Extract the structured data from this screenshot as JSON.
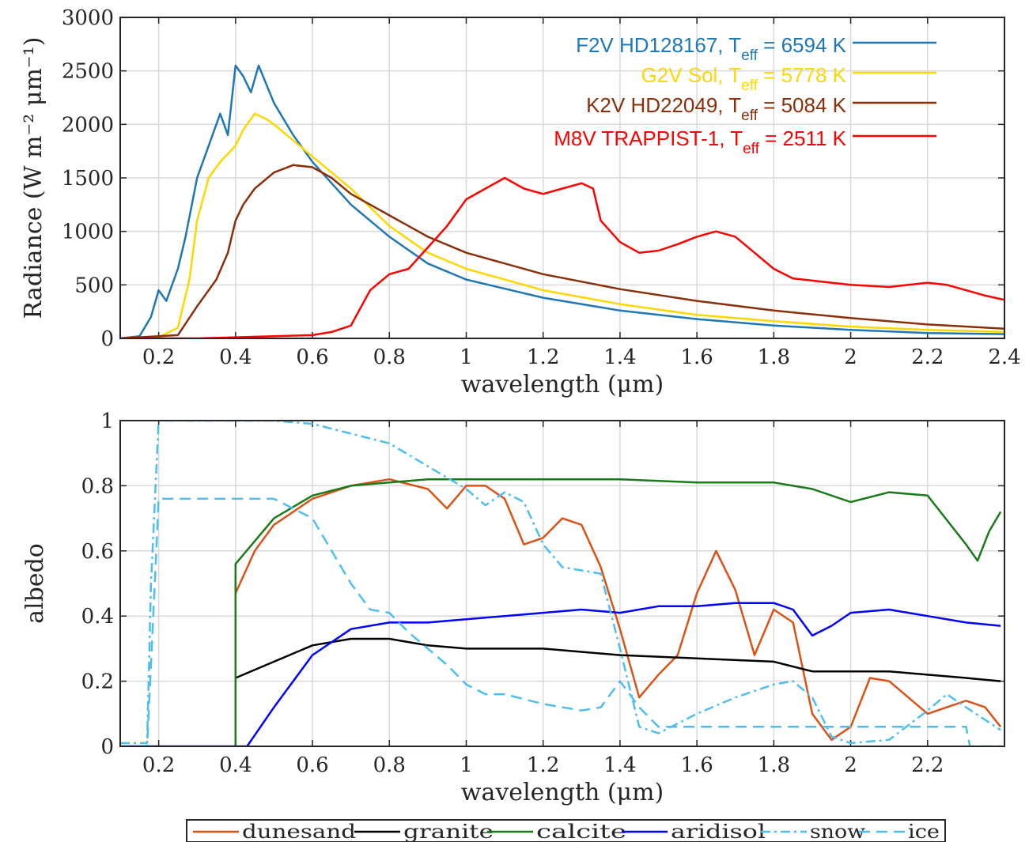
{
  "chart_data": [
    {
      "type": "line",
      "title": "",
      "xlabel": "wavelength (μm)",
      "ylabel": "Radiance (W m⁻² μm⁻¹)",
      "xlim": [
        0.1,
        2.4
      ],
      "ylim": [
        0,
        3000
      ],
      "xticks": [
        "0.2",
        "0.4",
        "0.6",
        "0.8",
        "1",
        "1.2",
        "1.4",
        "1.6",
        "1.8",
        "2",
        "2.2",
        "2.4"
      ],
      "yticks": [
        "0",
        "500",
        "1000",
        "1500",
        "2000",
        "2500",
        "3000"
      ],
      "grid": true,
      "legend_position": "top-right",
      "series": [
        {
          "name": "F2V HD128167, T_eff = 6594 K",
          "legend_main": "F2V HD128167, T",
          "legend_sub": "eff",
          "legend_tail": " = 6594 K",
          "color": "#1f77b4",
          "x": [
            0.1,
            0.15,
            0.18,
            0.2,
            0.22,
            0.25,
            0.27,
            0.3,
            0.33,
            0.36,
            0.38,
            0.4,
            0.42,
            0.44,
            0.46,
            0.5,
            0.55,
            0.6,
            0.65,
            0.7,
            0.8,
            0.9,
            1.0,
            1.2,
            1.4,
            1.6,
            1.8,
            2.0,
            2.2,
            2.4
          ],
          "y": [
            0,
            20,
            200,
            450,
            350,
            650,
            950,
            1500,
            1800,
            2100,
            1900,
            2550,
            2450,
            2300,
            2550,
            2200,
            1900,
            1650,
            1450,
            1250,
            950,
            700,
            550,
            380,
            260,
            180,
            120,
            80,
            50,
            40
          ]
        },
        {
          "name": "G2V Sol, T_eff = 5778 K",
          "legend_main": "G2V Sol, T",
          "legend_sub": "eff",
          "legend_tail": " = 5778 K",
          "color": "#ffd700",
          "x": [
            0.1,
            0.2,
            0.25,
            0.28,
            0.3,
            0.33,
            0.36,
            0.4,
            0.42,
            0.45,
            0.48,
            0.5,
            0.55,
            0.6,
            0.7,
            0.8,
            0.9,
            1.0,
            1.2,
            1.4,
            1.6,
            1.8,
            2.0,
            2.2,
            2.4
          ],
          "y": [
            0,
            10,
            100,
            550,
            1100,
            1500,
            1650,
            1800,
            1950,
            2100,
            2050,
            2000,
            1850,
            1700,
            1400,
            1050,
            800,
            650,
            450,
            320,
            220,
            160,
            110,
            80,
            60
          ]
        },
        {
          "name": "K2V HD22049, T_eff = 5084 K",
          "legend_main": "K2V HD22049, T",
          "legend_sub": "eff",
          "legend_tail": " = 5084 K",
          "color": "#8b2f0a",
          "x": [
            0.1,
            0.25,
            0.3,
            0.35,
            0.38,
            0.4,
            0.42,
            0.45,
            0.5,
            0.55,
            0.6,
            0.65,
            0.7,
            0.8,
            0.9,
            1.0,
            1.2,
            1.4,
            1.6,
            1.8,
            2.0,
            2.2,
            2.4
          ],
          "y": [
            0,
            30,
            300,
            550,
            800,
            1100,
            1250,
            1400,
            1550,
            1620,
            1600,
            1500,
            1350,
            1150,
            950,
            800,
            600,
            460,
            350,
            260,
            190,
            130,
            90
          ]
        },
        {
          "name": "M8V TRAPPIST-1, T_eff = 2511 K",
          "legend_main": "M8V TRAPPIST-1, T",
          "legend_sub": "eff",
          "legend_tail": " = 2511 K",
          "color": "#ff0000",
          "x": [
            0.1,
            0.3,
            0.5,
            0.6,
            0.65,
            0.7,
            0.75,
            0.8,
            0.85,
            0.9,
            0.95,
            1.0,
            1.05,
            1.1,
            1.15,
            1.2,
            1.25,
            1.3,
            1.33,
            1.35,
            1.4,
            1.45,
            1.5,
            1.55,
            1.6,
            1.65,
            1.7,
            1.75,
            1.8,
            1.85,
            1.9,
            1.95,
            2.0,
            2.1,
            2.2,
            2.25,
            2.3,
            2.35,
            2.4
          ],
          "y": [
            0,
            0,
            20,
            30,
            60,
            120,
            450,
            600,
            650,
            850,
            1050,
            1300,
            1400,
            1500,
            1400,
            1350,
            1400,
            1450,
            1400,
            1100,
            900,
            800,
            820,
            880,
            950,
            1000,
            950,
            800,
            650,
            560,
            540,
            520,
            500,
            480,
            520,
            500,
            450,
            400,
            360
          ]
        }
      ]
    },
    {
      "type": "line",
      "title": "",
      "xlabel": "wavelength (μm)",
      "ylabel": "albedo",
      "xlim": [
        0.1,
        2.4
      ],
      "ylim": [
        0,
        1
      ],
      "xticks": [
        "0.2",
        "0.4",
        "0.6",
        "0.8",
        "1",
        "1.2",
        "1.4",
        "1.6",
        "1.8",
        "2",
        "2.2"
      ],
      "yticks": [
        "0",
        "0.2",
        "0.4",
        "0.6",
        "0.8",
        "1"
      ],
      "grid": true,
      "legend_position": "bottom-outside",
      "series": [
        {
          "name": "dunesand",
          "color": "#d95319",
          "dash": "",
          "x": [
            0.4,
            0.45,
            0.5,
            0.6,
            0.7,
            0.8,
            0.9,
            0.95,
            1.0,
            1.05,
            1.1,
            1.15,
            1.2,
            1.25,
            1.3,
            1.35,
            1.4,
            1.45,
            1.5,
            1.55,
            1.6,
            1.65,
            1.7,
            1.75,
            1.8,
            1.85,
            1.9,
            1.95,
            2.0,
            2.05,
            2.1,
            2.2,
            2.25,
            2.3,
            2.35,
            2.39
          ],
          "y": [
            0.47,
            0.6,
            0.68,
            0.76,
            0.8,
            0.82,
            0.79,
            0.73,
            0.8,
            0.8,
            0.76,
            0.62,
            0.64,
            0.7,
            0.68,
            0.55,
            0.36,
            0.15,
            0.22,
            0.28,
            0.47,
            0.6,
            0.48,
            0.28,
            0.42,
            0.38,
            0.1,
            0.02,
            0.06,
            0.21,
            0.2,
            0.1,
            0.12,
            0.14,
            0.12,
            0.06
          ]
        },
        {
          "name": "granite",
          "color": "#000000",
          "dash": "",
          "x": [
            0.4,
            0.5,
            0.6,
            0.7,
            0.8,
            0.9,
            1.0,
            1.2,
            1.4,
            1.6,
            1.8,
            1.9,
            2.0,
            2.1,
            2.2,
            2.3,
            2.39
          ],
          "y": [
            0.21,
            0.26,
            0.31,
            0.33,
            0.33,
            0.31,
            0.3,
            0.3,
            0.28,
            0.27,
            0.26,
            0.23,
            0.23,
            0.23,
            0.22,
            0.21,
            0.2
          ]
        },
        {
          "name": "calcite",
          "color": "#1a7a1a",
          "dash": "",
          "x": [
            0.4,
            0.4,
            0.5,
            0.6,
            0.7,
            0.8,
            0.9,
            1.0,
            1.2,
            1.4,
            1.6,
            1.8,
            1.9,
            2.0,
            2.1,
            2.2,
            2.3,
            2.33,
            2.36,
            2.39
          ],
          "y": [
            0.0,
            0.56,
            0.7,
            0.77,
            0.8,
            0.81,
            0.82,
            0.82,
            0.82,
            0.82,
            0.81,
            0.81,
            0.79,
            0.75,
            0.78,
            0.77,
            0.62,
            0.57,
            0.66,
            0.72
          ]
        },
        {
          "name": "aridisol",
          "color": "#0000ff",
          "dash": "",
          "x": [
            0.1,
            0.43,
            0.5,
            0.55,
            0.6,
            0.7,
            0.8,
            0.9,
            1.0,
            1.2,
            1.3,
            1.4,
            1.5,
            1.6,
            1.7,
            1.8,
            1.85,
            1.9,
            1.95,
            2.0,
            2.1,
            2.2,
            2.3,
            2.39
          ],
          "y": [
            0.0,
            0.0,
            0.12,
            0.2,
            0.28,
            0.36,
            0.38,
            0.38,
            0.39,
            0.41,
            0.42,
            0.41,
            0.43,
            0.43,
            0.44,
            0.44,
            0.42,
            0.34,
            0.37,
            0.41,
            0.42,
            0.4,
            0.38,
            0.37
          ]
        },
        {
          "name": "snow",
          "color": "#4dbeee",
          "dash": "12,5,3,5",
          "x": [
            0.1,
            0.17,
            0.18,
            0.2,
            0.3,
            0.4,
            0.5,
            0.6,
            0.7,
            0.8,
            0.9,
            1.0,
            1.05,
            1.1,
            1.15,
            1.2,
            1.25,
            1.3,
            1.35,
            1.4,
            1.45,
            1.5,
            1.6,
            1.7,
            1.8,
            1.85,
            1.9,
            1.95,
            2.0,
            2.1,
            2.2,
            2.25,
            2.3,
            2.39
          ],
          "y": [
            0.01,
            0.01,
            0.5,
            1.0,
            1.0,
            1.0,
            1.0,
            0.99,
            0.96,
            0.93,
            0.86,
            0.79,
            0.74,
            0.78,
            0.75,
            0.62,
            0.55,
            0.54,
            0.53,
            0.3,
            0.06,
            0.04,
            0.1,
            0.15,
            0.19,
            0.2,
            0.15,
            0.03,
            0.01,
            0.02,
            0.11,
            0.16,
            0.12,
            0.05
          ]
        },
        {
          "name": "ice",
          "color": "#4dbeee",
          "dash": "14,8",
          "x": [
            0.1,
            0.17,
            0.19,
            0.2,
            0.3,
            0.4,
            0.5,
            0.6,
            0.65,
            0.7,
            0.75,
            0.8,
            0.85,
            0.9,
            0.95,
            1.0,
            1.05,
            1.1,
            1.2,
            1.3,
            1.35,
            1.4,
            1.45,
            1.5,
            1.6,
            1.8,
            2.0,
            2.2,
            2.3,
            2.31,
            2.39
          ],
          "y": [
            0.0,
            0.0,
            0.5,
            0.76,
            0.76,
            0.76,
            0.76,
            0.7,
            0.6,
            0.5,
            0.42,
            0.41,
            0.35,
            0.3,
            0.25,
            0.19,
            0.16,
            0.16,
            0.13,
            0.11,
            0.12,
            0.2,
            0.12,
            0.06,
            0.06,
            0.06,
            0.06,
            0.06,
            0.06,
            0.0,
            0.0
          ]
        }
      ]
    }
  ]
}
